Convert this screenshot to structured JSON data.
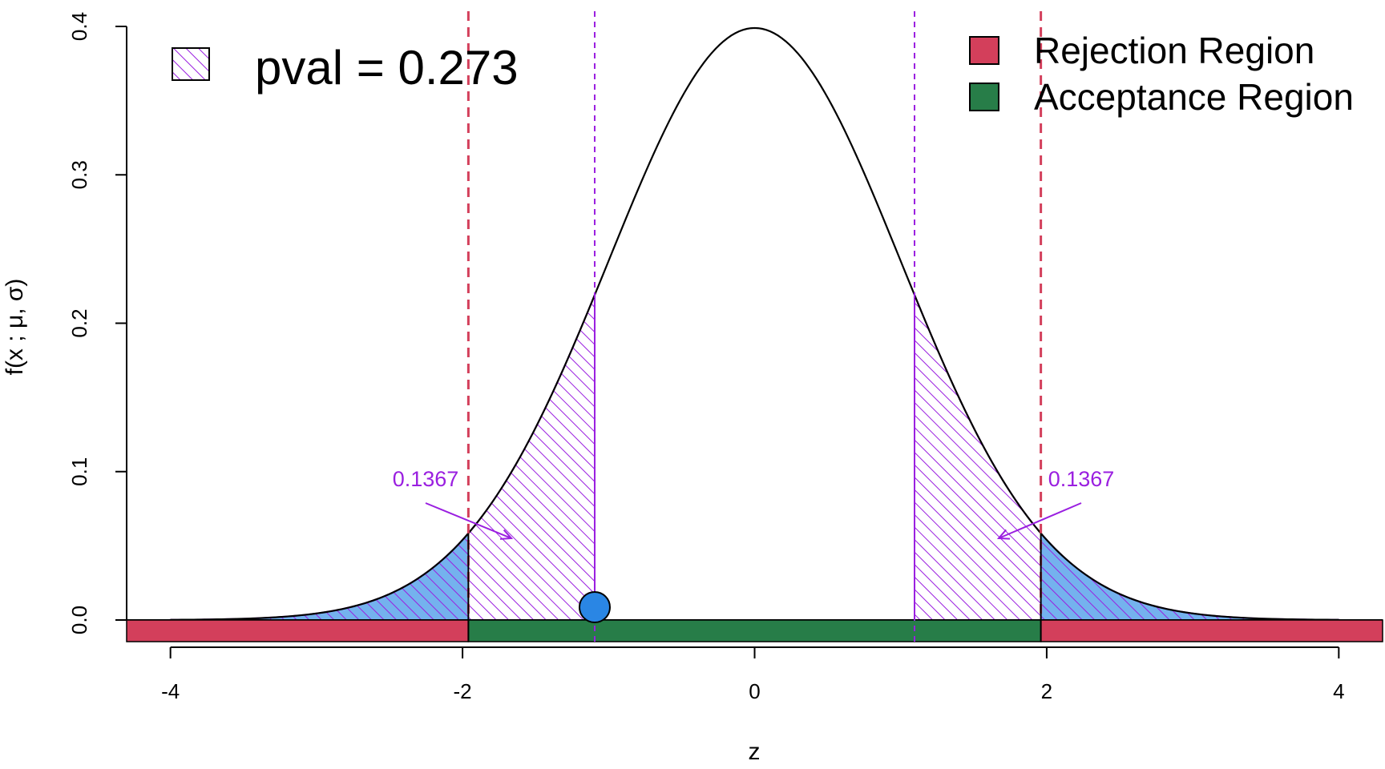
{
  "chart_data": {
    "type": "area",
    "xlabel": "z",
    "ylabel": "f(x ; μ, σ)",
    "xlim": [
      -4.3,
      4.3
    ],
    "ylim": [
      0,
      0.4
    ],
    "x_ticks": [
      -4,
      -2,
      0,
      2,
      4
    ],
    "x_tick_labels": [
      "-4",
      "-2",
      "0",
      "2",
      "4"
    ],
    "y_ticks": [
      0.0,
      0.1,
      0.2,
      0.3,
      0.4
    ],
    "y_tick_labels": [
      "0.0",
      "0.1",
      "0.2",
      "0.3",
      "0.4"
    ],
    "curve": {
      "name": "standard normal density",
      "mean": 0,
      "sd": 1,
      "x_range": [
        -4,
        4
      ],
      "color": "#000000"
    },
    "critical_values": [
      -1.96,
      1.96
    ],
    "test_statistic": -1.095,
    "pvalue_bounds": [
      -1.095,
      1.095
    ],
    "regions": [
      {
        "name": "Rejection Region",
        "from": -4.3,
        "to": -1.96,
        "color": "#D33F5B"
      },
      {
        "name": "Acceptance Region",
        "from": -1.96,
        "to": 1.96,
        "color": "#277D48"
      },
      {
        "name": "Rejection Region",
        "from": 1.96,
        "to": 4.3,
        "color": "#D33F5B"
      }
    ],
    "legend": {
      "placement": "top-right",
      "entries": [
        {
          "label": "Rejection Region",
          "color": "#D33F5B"
        },
        {
          "label": "Acceptance Region",
          "color": "#277D48"
        }
      ]
    },
    "pval_legend": {
      "placement": "top-left",
      "label": "pval = 0.273"
    },
    "annotations": [
      {
        "text": "0.1367",
        "side": "left"
      },
      {
        "text": "0.1367",
        "side": "right"
      }
    ],
    "colors": {
      "tail_fill": "#74B2EE",
      "hatch": "#9A1FE0",
      "critical_line": "#D33F5B",
      "statistic_point": "#2A86E4"
    }
  }
}
